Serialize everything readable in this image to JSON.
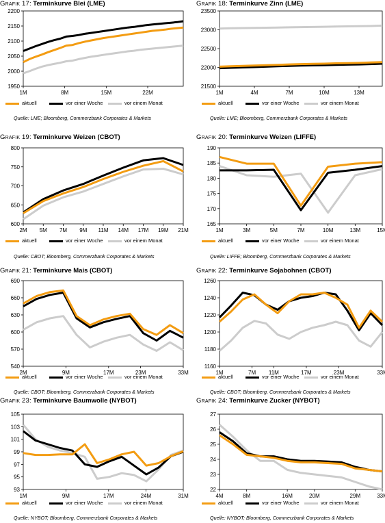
{
  "legend": {
    "aktuell": "aktuell",
    "woche": "vor einer Woche",
    "monat": "vor einem Monat"
  },
  "colors": {
    "aktuell": "#f39c12",
    "woche": "#000000",
    "monat": "#cccccc"
  },
  "charts": [
    {
      "id": "g17",
      "prefix": "Grafik 17",
      "title": "Terminkurve Blei (LME)",
      "source": "Quelle: LME; Bloomberg, Commerzbank Corporates & Markets",
      "chart_data": {
        "type": "line",
        "x_ticks": [
          "1M",
          "8M",
          "15M",
          "22M"
        ],
        "x_tick_pos": [
          0,
          7,
          14,
          21
        ],
        "x_max": 27,
        "ylim": [
          1950,
          2200
        ],
        "y_ticks": [
          1950,
          2000,
          2050,
          2100,
          2150,
          2200
        ],
        "series": [
          {
            "key": "aktuell",
            "values": [
              2030,
              2040,
              2048,
              2055,
              2063,
              2070,
              2077,
              2085,
              2087,
              2093,
              2098,
              2102,
              2106,
              2110,
              2113,
              2116,
              2119,
              2122,
              2125,
              2128,
              2131,
              2134,
              2136,
              2138,
              2141,
              2143,
              2145
            ]
          },
          {
            "key": "woche",
            "values": [
              2067,
              2075,
              2083,
              2090,
              2097,
              2103,
              2108,
              2115,
              2117,
              2120,
              2124,
              2127,
              2130,
              2133,
              2136,
              2139,
              2142,
              2145,
              2147,
              2150,
              2153,
              2155,
              2157,
              2159,
              2161,
              2163,
              2166
            ]
          },
          {
            "key": "monat",
            "values": [
              1993,
              2000,
              2008,
              2015,
              2020,
              2024,
              2028,
              2033,
              2035,
              2040,
              2044,
              2048,
              2051,
              2054,
              2057,
              2060,
              2063,
              2066,
              2068,
              2071,
              2073,
              2075,
              2077,
              2079,
              2081,
              2083,
              2085
            ]
          }
        ]
      }
    },
    {
      "id": "g18",
      "prefix": "Grafik 18",
      "title": "Terminkurve Zinn (LME)",
      "source": "Quelle: LME; Bloomberg, Commerzbank Corporates & Markets",
      "chart_data": {
        "type": "line",
        "x_ticks": [
          "1M",
          "4M",
          "7M",
          "10M",
          "13M"
        ],
        "x_tick_pos": [
          0,
          3,
          6,
          9,
          12
        ],
        "x_max": 14,
        "ylim": [
          21500,
          23500
        ],
        "y_ticks": [
          21500,
          22000,
          22500,
          23000,
          23500
        ],
        "series": [
          {
            "key": "aktuell",
            "values": [
              22020,
              22030,
              22040,
              22050,
              22060,
              22070,
              22080,
              22090,
              22095,
              22100,
              22110,
              22115,
              22120,
              22130,
              22140
            ]
          },
          {
            "key": "woche",
            "values": [
              21980,
              21990,
              22000,
              22010,
              22020,
              22030,
              22040,
              22050,
              22055,
              22060,
              22070,
              22075,
              22080,
              22090,
              22100
            ]
          },
          {
            "key": "monat",
            "values": [
              23030,
              23040,
              23045,
              23050,
              23055,
              23060,
              23065,
              23070,
              23075,
              23080,
              23085,
              23090,
              23095,
              23100,
              23110
            ]
          }
        ]
      }
    },
    {
      "id": "g19",
      "prefix": "Grafik 19",
      "title": "Terminkurve Weizen (CBOT)",
      "source": "Quelle: CBOT; Bloomberg, Commerzbank Corporates & Markets",
      "chart_data": {
        "type": "line",
        "x_ticks": [
          "2M",
          "5M",
          "7M",
          "9M",
          "11M",
          "14M",
          "17M",
          "19M",
          "21M"
        ],
        "x_tick_pos": [
          0,
          1,
          2,
          3,
          4,
          5,
          6,
          7,
          8
        ],
        "x_max": 8,
        "ylim": [
          600,
          800
        ],
        "y_ticks": [
          600,
          650,
          700,
          750,
          800
        ],
        "series": [
          {
            "key": "aktuell",
            "values": [
              628,
              660,
              680,
              697,
              718,
              737,
              753,
              765,
              738
            ]
          },
          {
            "key": "woche",
            "values": [
              630,
              665,
              688,
              705,
              727,
              748,
              767,
              773,
              755
            ]
          },
          {
            "key": "monat",
            "values": [
              612,
              648,
              670,
              685,
              705,
              725,
              743,
              745,
              730
            ]
          }
        ]
      }
    },
    {
      "id": "g20",
      "prefix": "Grafik 20",
      "title": "Terminkurve Weizen (LIFFE)",
      "source": "Quelle: LIFFE; Bloomberg, Commerzbank Corporates & Markets",
      "chart_data": {
        "type": "line",
        "x_ticks": [
          "1M",
          "3M",
          "5M",
          "7M",
          "10M",
          "13M",
          "15M"
        ],
        "x_tick_pos": [
          0,
          1,
          2,
          3,
          4,
          5,
          6
        ],
        "x_max": 6,
        "ylim": [
          165,
          190
        ],
        "y_ticks": [
          165,
          170,
          175,
          180,
          185,
          190
        ],
        "series": [
          {
            "key": "aktuell",
            "values": [
              187,
              184.8,
              184.8,
              171,
              183.8,
              184.8,
              185.3
            ]
          },
          {
            "key": "woche",
            "values": [
              182.6,
              182.6,
              182.8,
              169.5,
              181.8,
              182.8,
              184
            ]
          },
          {
            "key": "monat",
            "values": [
              184,
              181,
              180.5,
              181.5,
              168.7,
              181,
              183
            ]
          }
        ]
      }
    },
    {
      "id": "g21",
      "prefix": "Grafik 21",
      "title": "Terminkurve Mais (CBOT)",
      "source": "Quelle: CBOT; Bloomberg, Commerzbank Corporates & Markets",
      "chart_data": {
        "type": "line",
        "x_ticks": [
          "2M",
          "9M",
          "17M",
          "23M",
          "33M"
        ],
        "x_tick_pos": [
          0,
          4,
          8,
          11,
          15
        ],
        "x_max": 15,
        "ylim": [
          540,
          690
        ],
        "y_ticks": [
          540,
          570,
          600,
          630,
          660,
          690
        ],
        "series": [
          {
            "key": "aktuell",
            "values": [
              650,
              663,
              670,
              673,
              628,
              612,
              622,
              628,
              632,
              605,
              595,
              612,
              598
            ]
          },
          {
            "key": "woche",
            "values": [
              645,
              658,
              665,
              669,
              624,
              608,
              617,
              623,
              628,
              598,
              585,
              602,
              590
            ]
          },
          {
            "key": "monat",
            "values": [
              604,
              617,
              624,
              628,
              595,
              573,
              583,
              590,
              595,
              578,
              567,
              582,
              568
            ]
          }
        ]
      }
    },
    {
      "id": "g22",
      "prefix": "Grafik 22",
      "title": "Terminkurve Sojabohnen (CBOT)",
      "source": "Quelle: CBOT; Bloomberg, Commerzbank Corporates & Markets",
      "chart_data": {
        "type": "line",
        "x_ticks": [
          "1M",
          "7M",
          "11M",
          "17M",
          "23M",
          "33M"
        ],
        "x_tick_pos": [
          0,
          3,
          5,
          8,
          11,
          15
        ],
        "x_max": 15,
        "ylim": [
          1160,
          1260
        ],
        "y_ticks": [
          1160,
          1180,
          1200,
          1220,
          1240,
          1260
        ],
        "series": [
          {
            "key": "aktuell",
            "values": [
              1212,
              1224,
              1238,
              1244,
              1232,
              1222,
              1236,
              1244,
              1244,
              1246,
              1240,
              1232,
              1205,
              1225,
              1212
            ]
          },
          {
            "key": "woche",
            "values": [
              1217,
              1231,
              1246,
              1243,
              1232,
              1226,
              1236,
              1240,
              1242,
              1246,
              1244,
              1225,
              1202,
              1222,
              1208
            ]
          },
          {
            "key": "monat",
            "values": [
              1178,
              1190,
              1205,
              1213,
              1210,
              1197,
              1192,
              1200,
              1205,
              1208,
              1212,
              1208,
              1190,
              1183,
              1200
            ]
          }
        ]
      }
    },
    {
      "id": "g23",
      "prefix": "Grafik 23",
      "title": "Terminkurve Baumwolle (NYBOT)",
      "source": "Quelle: NYBOT; Bloomberg, Commerzbank Corporates & Markets",
      "chart_data": {
        "type": "line",
        "x_ticks": [
          "1M",
          "9M",
          "17M",
          "24M",
          "31M"
        ],
        "x_tick_pos": [
          0,
          4,
          8,
          11.5,
          15
        ],
        "x_max": 15,
        "ylim": [
          93,
          105
        ],
        "y_ticks": [
          93,
          95,
          97,
          99,
          101,
          103,
          105
        ],
        "series": [
          {
            "key": "aktuell",
            "values": [
              98.8,
              98.5,
              98.5,
              98.6,
              98.6,
              100.2,
              97.2,
              97.8,
              98.6,
              99,
              96.8,
              97.2,
              98.3,
              99.1
            ]
          },
          {
            "key": "woche",
            "values": [
              102.3,
              100.8,
              100.2,
              99.6,
              99.2,
              97,
              96.6,
              97.5,
              98.2,
              96.8,
              95.4,
              96.5,
              98.3,
              99
            ]
          },
          {
            "key": "monat",
            "values": [
              103.3,
              101,
              99.8,
              99.2,
              98.8,
              98.2,
              94.7,
              95,
              95.6,
              95.3,
              94.3,
              96.2,
              98.5,
              99.2
            ]
          }
        ]
      }
    },
    {
      "id": "g24",
      "prefix": "Grafik 24",
      "title": "Terminkurve Zucker (NYBOT)",
      "source": "Quelle: NYBOT; Bloomberg, Commerzbank Corporates & Markets",
      "chart_data": {
        "type": "line",
        "x_ticks": [
          "4M",
          "8M",
          "16M",
          "20M",
          "29M",
          "33M"
        ],
        "x_tick_pos": [
          0,
          2,
          5,
          7,
          10,
          12
        ],
        "x_max": 12,
        "ylim": [
          22,
          27
        ],
        "y_ticks": [
          22,
          23,
          24,
          25,
          26,
          27
        ],
        "series": [
          {
            "key": "aktuell",
            "values": [
              25.6,
              25,
              24.3,
              24.2,
              24.1,
              23.9,
              23.8,
              23.8,
              23.75,
              23.7,
              23.4,
              23.3,
              23.2
            ]
          },
          {
            "key": "woche",
            "values": [
              25.8,
              25.2,
              24.4,
              24.2,
              24.2,
              24,
              23.9,
              23.9,
              23.85,
              23.8,
              23.5,
              23.3,
              23.2
            ]
          },
          {
            "key": "monat",
            "values": [
              26.3,
              25.5,
              24.6,
              23.9,
              23.9,
              23.3,
              23.1,
              23,
              22.9,
              22.8,
              22.5,
              22.2,
              22
            ]
          }
        ]
      }
    }
  ]
}
